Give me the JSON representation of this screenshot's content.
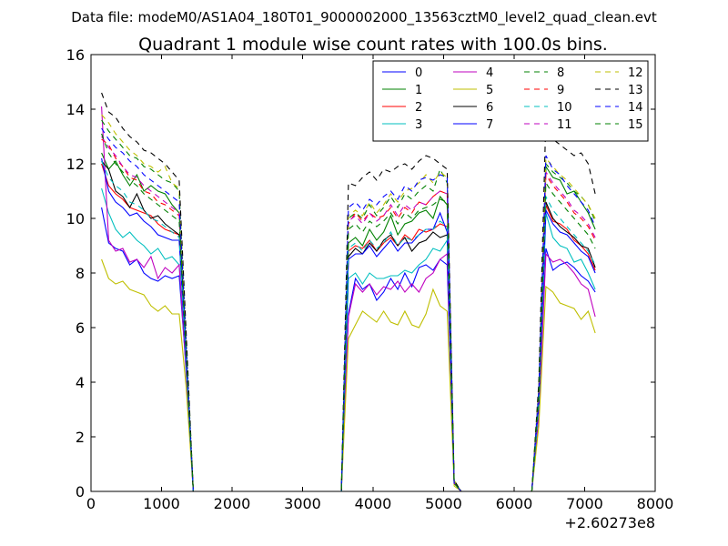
{
  "chart_data": {
    "type": "line",
    "suptitle": "Data file: modeM0/AS1A04_180T01_9000002000_13563cztM0_level2_quad_clean.evt",
    "title": "Quadrant 1 module wise count rates with 100.0s bins.",
    "xlabel": "",
    "ylabel": "",
    "xlim": [
      0,
      8000
    ],
    "ylim": [
      0,
      16
    ],
    "x_offset_label": "+2.60273e8",
    "xticks": [
      "0",
      "1000",
      "2000",
      "3000",
      "4000",
      "5000",
      "6000",
      "7000",
      "8000"
    ],
    "yticks": [
      "0",
      "2",
      "4",
      "6",
      "8",
      "10",
      "12",
      "14",
      "16"
    ],
    "grid": false,
    "legend_position": "top-right",
    "legend_columns": 4,
    "x": [
      150,
      250,
      350,
      450,
      550,
      650,
      750,
      850,
      950,
      1050,
      1150,
      1250,
      1350,
      1450,
      1550,
      1650,
      1750,
      1850,
      1950,
      2050,
      2150,
      2250,
      2350,
      2450,
      2550,
      2650,
      2750,
      2850,
      2950,
      3050,
      3150,
      3250,
      3350,
      3450,
      3550,
      3650,
      3750,
      3850,
      3950,
      4050,
      4150,
      4250,
      4350,
      4450,
      4550,
      4650,
      4750,
      4850,
      4950,
      5050,
      5150,
      5250,
      5350,
      5450,
      5550,
      5650,
      5750,
      5850,
      5950,
      6050,
      6150,
      6250,
      6350,
      6450,
      6550,
      6650,
      6750,
      6850,
      6950,
      7050,
      7150
    ],
    "series": [
      {
        "name": "0",
        "color": "#0000ff",
        "dash": "solid",
        "values": [
          10.4,
          9.1,
          8.9,
          8.8,
          8.3,
          8.5,
          8.0,
          7.8,
          7.7,
          7.9,
          7.8,
          7.9,
          4.5,
          0,
          0,
          0,
          0,
          0,
          0,
          0,
          0,
          0,
          0,
          0,
          0,
          0,
          0,
          0,
          0,
          0,
          0,
          0,
          0,
          0,
          0,
          6.5,
          7.8,
          7.4,
          7.6,
          7.0,
          7.3,
          7.8,
          7.4,
          8.0,
          7.5,
          8.2,
          8.3,
          8.1,
          8.5,
          8.3,
          0.3,
          0,
          0,
          0,
          0,
          0,
          0,
          0,
          0,
          0,
          0,
          0,
          3.0,
          8.9,
          8.1,
          8.3,
          8.4,
          8.2,
          7.9,
          7.7,
          7.3
        ]
      },
      {
        "name": "1",
        "color": "#008000",
        "dash": "solid",
        "values": [
          12.4,
          11.8,
          12.1,
          11.6,
          11.2,
          11.6,
          11.0,
          11.2,
          11.0,
          10.9,
          10.5,
          10.2,
          5.0,
          0,
          0,
          0,
          0,
          0,
          0,
          0,
          0,
          0,
          0,
          0,
          0,
          0,
          0,
          0,
          0,
          0,
          0,
          0,
          0,
          0,
          0,
          9.1,
          9.3,
          9.0,
          9.6,
          9.2,
          9.5,
          10.1,
          9.4,
          9.8,
          9.9,
          10.2,
          10.3,
          10.0,
          10.8,
          10.5,
          0.3,
          0,
          0,
          0,
          0,
          0,
          0,
          0,
          0,
          0,
          0,
          0,
          3.4,
          11.9,
          11.5,
          11.4,
          10.9,
          11.0,
          10.6,
          10.2,
          9.6
        ]
      },
      {
        "name": "2",
        "color": "#ff0000",
        "dash": "solid",
        "values": [
          12.0,
          11.2,
          10.9,
          10.7,
          10.4,
          10.3,
          10.2,
          10.1,
          9.8,
          9.6,
          9.5,
          9.4,
          4.8,
          0,
          0,
          0,
          0,
          0,
          0,
          0,
          0,
          0,
          0,
          0,
          0,
          0,
          0,
          0,
          0,
          0,
          0,
          0,
          0,
          0,
          0,
          8.8,
          9.0,
          8.9,
          9.2,
          8.8,
          9.1,
          9.3,
          9.0,
          9.4,
          9.2,
          9.6,
          9.5,
          9.6,
          9.8,
          9.7,
          0.3,
          0,
          0,
          0,
          0,
          0,
          0,
          0,
          0,
          0,
          0,
          0,
          3.3,
          10.5,
          9.9,
          9.8,
          9.6,
          9.2,
          9.0,
          8.7,
          8.1
        ]
      },
      {
        "name": "3",
        "color": "#00bfbf",
        "dash": "solid",
        "values": [
          11.1,
          10.2,
          9.6,
          9.3,
          9.5,
          9.2,
          9.0,
          8.7,
          8.9,
          8.5,
          8.6,
          8.3,
          4.3,
          0,
          0,
          0,
          0,
          0,
          0,
          0,
          0,
          0,
          0,
          0,
          0,
          0,
          0,
          0,
          0,
          0,
          0,
          0,
          0,
          0,
          0,
          7.8,
          8.0,
          7.6,
          8.0,
          7.8,
          7.8,
          7.9,
          7.9,
          8.1,
          8.0,
          8.3,
          8.5,
          8.9,
          8.8,
          9.2,
          0.3,
          0,
          0,
          0,
          0,
          0,
          0,
          0,
          0,
          0,
          0,
          0,
          2.9,
          10.2,
          9.3,
          9.0,
          8.9,
          8.4,
          8.5,
          8.0,
          7.4
        ]
      },
      {
        "name": "4",
        "color": "#bf00bf",
        "dash": "solid",
        "values": [
          14.1,
          9.2,
          8.8,
          8.9,
          8.4,
          8.5,
          8.2,
          8.6,
          7.8,
          8.2,
          8.0,
          8.3,
          4.4,
          0,
          0,
          0,
          0,
          0,
          0,
          0,
          0,
          0,
          0,
          0,
          0,
          0,
          0,
          0,
          0,
          0,
          0,
          0,
          0,
          0,
          0,
          6.4,
          7.6,
          7.3,
          7.6,
          7.2,
          7.5,
          7.4,
          7.7,
          7.3,
          7.6,
          7.3,
          7.8,
          8.0,
          8.5,
          8.7,
          0.3,
          0,
          0,
          0,
          0,
          0,
          0,
          0,
          0,
          0,
          0,
          0,
          2.8,
          8.7,
          8.4,
          8.5,
          8.3,
          8.0,
          7.6,
          7.4,
          6.4
        ]
      },
      {
        "name": "5",
        "color": "#bfbf00",
        "dash": "solid",
        "values": [
          8.5,
          7.8,
          7.6,
          7.7,
          7.4,
          7.3,
          7.2,
          6.8,
          6.6,
          6.8,
          6.5,
          6.5,
          3.8,
          0,
          0,
          0,
          0,
          0,
          0,
          0,
          0,
          0,
          0,
          0,
          0,
          0,
          0,
          0,
          0,
          0,
          0,
          0,
          0,
          0,
          0,
          5.6,
          6.1,
          6.6,
          6.4,
          6.2,
          6.6,
          6.2,
          6.1,
          6.6,
          6.1,
          6.0,
          6.5,
          7.4,
          6.8,
          6.6,
          0.2,
          0,
          0,
          0,
          0,
          0,
          0,
          0,
          0,
          0,
          0,
          0,
          2.4,
          7.5,
          7.3,
          6.9,
          6.8,
          6.7,
          6.3,
          6.6,
          5.8
        ]
      },
      {
        "name": "6",
        "color": "#000000",
        "dash": "solid",
        "values": [
          12.1,
          11.8,
          11.0,
          10.8,
          10.4,
          10.9,
          10.3,
          10.0,
          10.1,
          9.8,
          9.6,
          9.4,
          4.9,
          0,
          0,
          0,
          0,
          0,
          0,
          0,
          0,
          0,
          0,
          0,
          0,
          0,
          0,
          0,
          0,
          0,
          0,
          0,
          0,
          0,
          0,
          8.6,
          8.9,
          8.7,
          9.1,
          8.8,
          9.2,
          9.4,
          9.0,
          9.3,
          8.8,
          9.1,
          9.2,
          9.5,
          9.3,
          9.4,
          0.3,
          0,
          0,
          0,
          0,
          0,
          0,
          0,
          0,
          0,
          0,
          0,
          3.3,
          10.6,
          10.0,
          9.7,
          9.5,
          9.3,
          9.0,
          8.9,
          8.2
        ]
      },
      {
        "name": "7",
        "color": "#0000ff",
        "dash": "solid",
        "values": [
          12.2,
          11.0,
          10.6,
          10.4,
          10.1,
          10.2,
          9.9,
          9.7,
          9.4,
          9.3,
          9.2,
          9.2,
          4.7,
          0,
          0,
          0,
          0,
          0,
          0,
          0,
          0,
          0,
          0,
          0,
          0,
          0,
          0,
          0,
          0,
          0,
          0,
          0,
          0,
          0,
          0,
          8.5,
          8.7,
          8.7,
          9.0,
          8.6,
          8.9,
          9.2,
          8.8,
          9.1,
          9.1,
          9.4,
          9.6,
          9.6,
          10.2,
          9.5,
          0.3,
          0,
          0,
          0,
          0,
          0,
          0,
          0,
          0,
          0,
          0,
          0,
          3.2,
          10.3,
          9.8,
          9.5,
          9.4,
          9.1,
          8.8,
          8.6,
          8.0
        ]
      },
      {
        "name": "8",
        "color": "#008000",
        "dash": "dashed",
        "values": [
          13.6,
          13.2,
          12.9,
          12.6,
          12.3,
          12.2,
          11.9,
          11.8,
          11.6,
          11.4,
          11.3,
          11.0,
          5.5,
          0,
          0,
          0,
          0,
          0,
          0,
          0,
          0,
          0,
          0,
          0,
          0,
          0,
          0,
          0,
          0,
          0,
          0,
          0,
          0,
          0,
          0,
          10.0,
          10.2,
          10.0,
          10.5,
          10.1,
          10.4,
          10.8,
          10.4,
          10.9,
          10.7,
          11.0,
          11.2,
          11.0,
          11.8,
          11.3,
          0.4,
          0,
          0,
          0,
          0,
          0,
          0,
          0,
          0,
          0,
          0,
          0,
          3.8,
          12.0,
          11.7,
          11.5,
          11.3,
          11.0,
          10.8,
          10.5,
          9.9
        ]
      },
      {
        "name": "9",
        "color": "#ff0000",
        "dash": "dashed",
        "values": [
          12.9,
          12.7,
          12.2,
          11.9,
          11.5,
          11.4,
          11.0,
          10.9,
          10.6,
          10.5,
          10.3,
          10.1,
          5.2,
          0,
          0,
          0,
          0,
          0,
          0,
          0,
          0,
          0,
          0,
          0,
          0,
          0,
          0,
          0,
          0,
          0,
          0,
          0,
          0,
          0,
          0,
          9.8,
          10.2,
          9.9,
          10.2,
          10.0,
          10.1,
          10.4,
          10.0,
          10.4,
          10.2,
          10.6,
          10.5,
          10.8,
          11.0,
          10.9,
          0.3,
          0,
          0,
          0,
          0,
          0,
          0,
          0,
          0,
          0,
          0,
          0,
          3.6,
          11.6,
          11.2,
          10.9,
          10.6,
          10.2,
          10.0,
          9.7,
          9.2
        ]
      },
      {
        "name": "10",
        "color": "#00bfbf",
        "dash": "dashed",
        "values": [
          12.1,
          11.5,
          11.2,
          11.0,
          10.6,
          10.5,
          10.3,
          10.0,
          9.9,
          9.7,
          9.5,
          9.3,
          4.8,
          0,
          0,
          0,
          0,
          0,
          0,
          0,
          0,
          0,
          0,
          0,
          0,
          0,
          0,
          0,
          0,
          0,
          0,
          0,
          0,
          0,
          0,
          8.9,
          9.1,
          8.8,
          9.2,
          8.9,
          9.1,
          9.5,
          9.0,
          9.3,
          9.2,
          9.4,
          9.6,
          9.6,
          9.9,
          9.7,
          0.3,
          0,
          0,
          0,
          0,
          0,
          0,
          0,
          0,
          0,
          0,
          0,
          3.2,
          10.8,
          10.3,
          10.0,
          9.7,
          9.4,
          9.1,
          8.8,
          8.3
        ]
      },
      {
        "name": "11",
        "color": "#bf00bf",
        "dash": "dashed",
        "values": [
          13.0,
          12.6,
          12.3,
          11.9,
          11.6,
          11.5,
          11.2,
          11.0,
          10.8,
          10.6,
          10.4,
          10.2,
          5.1,
          0,
          0,
          0,
          0,
          0,
          0,
          0,
          0,
          0,
          0,
          0,
          0,
          0,
          0,
          0,
          0,
          0,
          0,
          0,
          0,
          0,
          0,
          9.9,
          10.1,
          9.8,
          10.2,
          9.9,
          10.1,
          10.5,
          10.1,
          10.5,
          10.3,
          10.6,
          10.5,
          10.8,
          11.0,
          10.9,
          0.3,
          0,
          0,
          0,
          0,
          0,
          0,
          0,
          0,
          0,
          0,
          0,
          3.6,
          11.7,
          11.3,
          11.0,
          10.7,
          10.3,
          10.1,
          9.8,
          9.3
        ]
      },
      {
        "name": "12",
        "color": "#bfbf00",
        "dash": "dashed",
        "values": [
          13.8,
          13.5,
          13.1,
          12.8,
          12.5,
          12.3,
          12.0,
          11.9,
          11.7,
          11.9,
          11.3,
          11.1,
          5.6,
          0,
          0,
          0,
          0,
          0,
          0,
          0,
          0,
          0,
          0,
          0,
          0,
          0,
          0,
          0,
          0,
          0,
          0,
          0,
          0,
          0,
          0,
          10.1,
          10.3,
          10.1,
          10.6,
          10.2,
          10.5,
          10.9,
          10.6,
          11.0,
          11.1,
          11.3,
          11.6,
          11.3,
          11.7,
          11.5,
          0.4,
          0,
          0,
          0,
          0,
          0,
          0,
          0,
          0,
          0,
          0,
          0,
          3.8,
          12.2,
          11.9,
          11.6,
          11.4,
          11.1,
          10.8,
          10.5,
          10.0
        ]
      },
      {
        "name": "13",
        "color": "#000000",
        "dash": "dashed",
        "values": [
          14.6,
          13.9,
          13.7,
          13.3,
          13.0,
          12.8,
          12.5,
          12.4,
          12.2,
          12.0,
          11.7,
          11.4,
          5.8,
          0,
          0,
          0,
          0,
          0,
          0,
          0,
          0,
          0,
          0,
          0,
          0,
          0,
          0,
          0,
          0,
          0,
          0,
          0,
          0,
          0,
          0,
          11.3,
          11.2,
          11.5,
          11.7,
          11.4,
          11.8,
          11.7,
          11.9,
          12.0,
          11.8,
          12.1,
          12.3,
          12.2,
          12.0,
          11.8,
          0.4,
          0,
          0,
          0,
          0,
          0,
          0,
          0,
          0,
          0,
          0,
          0,
          4.0,
          13.7,
          12.9,
          12.7,
          12.5,
          12.3,
          12.4,
          12.0,
          10.9
        ]
      },
      {
        "name": "14",
        "color": "#0000ff",
        "dash": "dashed",
        "values": [
          13.3,
          12.9,
          12.6,
          12.4,
          12.1,
          11.9,
          11.6,
          11.4,
          11.2,
          11.0,
          10.8,
          10.6,
          5.3,
          0,
          0,
          0,
          0,
          0,
          0,
          0,
          0,
          0,
          0,
          0,
          0,
          0,
          0,
          0,
          0,
          0,
          0,
          0,
          0,
          0,
          0,
          10.4,
          10.6,
          10.3,
          10.7,
          10.5,
          10.8,
          11.0,
          10.7,
          11.2,
          11.0,
          11.4,
          11.5,
          11.4,
          11.6,
          11.5,
          0.3,
          0,
          0,
          0,
          0,
          0,
          0,
          0,
          0,
          0,
          0,
          0,
          3.7,
          12.3,
          11.8,
          11.6,
          11.2,
          10.9,
          10.6,
          10.3,
          9.7
        ]
      },
      {
        "name": "15",
        "color": "#008000",
        "dash": "dashed",
        "values": [
          13.1,
          12.4,
          12.0,
          11.7,
          11.4,
          11.2,
          10.9,
          10.7,
          10.5,
          10.3,
          10.1,
          9.9,
          5.0,
          0,
          0,
          0,
          0,
          0,
          0,
          0,
          0,
          0,
          0,
          0,
          0,
          0,
          0,
          0,
          0,
          0,
          0,
          0,
          0,
          0,
          0,
          9.6,
          9.8,
          9.5,
          9.9,
          9.7,
          9.9,
          10.2,
          9.8,
          10.2,
          10.0,
          10.3,
          10.4,
          10.5,
          10.7,
          10.6,
          0.3,
          0,
          0,
          0,
          0,
          0,
          0,
          0,
          0,
          0,
          0,
          0,
          3.5,
          11.3,
          10.9,
          10.6,
          10.3,
          10.0,
          9.7,
          9.4,
          8.9
        ]
      }
    ]
  }
}
